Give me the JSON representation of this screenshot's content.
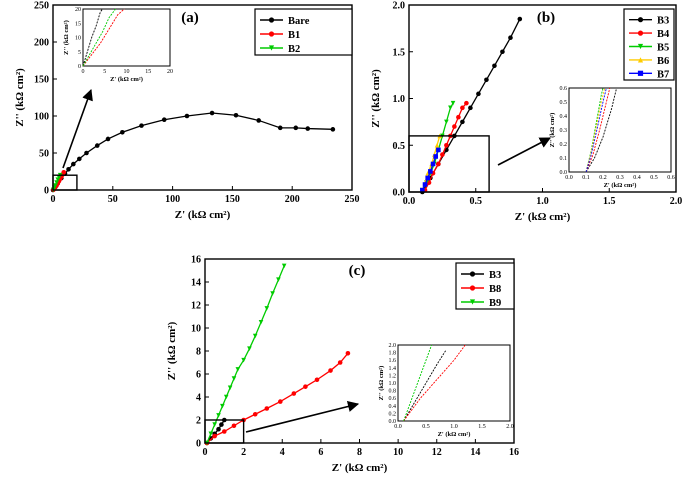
{
  "chart_data": [
    {
      "type": "line",
      "panel": "(a)",
      "xlabel": "Z' (kΩ cm²)",
      "ylabel": "Z'' (kΩ cm²)",
      "xlim": [
        0,
        250
      ],
      "ylim": [
        0,
        250
      ],
      "xticks": [
        0,
        50,
        100,
        150,
        200,
        250
      ],
      "yticks": [
        0,
        50,
        100,
        150,
        200,
        250
      ],
      "legend_position": "top-right",
      "grid": false,
      "series": [
        {
          "name": "Bare",
          "color": "#000000",
          "marker": "circle",
          "points": [
            [
              0,
              0
            ],
            [
              2,
              4
            ],
            [
              4,
              9
            ],
            [
              7,
              16
            ],
            [
              10,
              22
            ],
            [
              13,
              28
            ],
            [
              17,
              35
            ],
            [
              22,
              42
            ],
            [
              28,
              50
            ],
            [
              37,
              60
            ],
            [
              46,
              69
            ],
            [
              58,
              78
            ],
            [
              74,
              87
            ],
            [
              93,
              95
            ],
            [
              112,
              100
            ],
            [
              133,
              104
            ],
            [
              153,
              101
            ],
            [
              172,
              94
            ],
            [
              190,
              84
            ],
            [
              203,
              84
            ],
            [
              213,
              83
            ],
            [
              234,
              82
            ]
          ]
        },
        {
          "name": "B1",
          "color": "#ff0000",
          "marker": "circle",
          "points": [
            [
              0.5,
              0.5
            ],
            [
              1.5,
              3
            ],
            [
              3,
              6
            ],
            [
              4,
              9
            ],
            [
              5,
              12
            ],
            [
              6,
              15
            ],
            [
              7,
              18
            ],
            [
              8,
              21
            ],
            [
              9,
              24
            ]
          ]
        },
        {
          "name": "B2",
          "color": "#00cc00",
          "marker": "triangle-down",
          "points": [
            [
              0.3,
              0.3
            ],
            [
              1,
              3
            ],
            [
              2,
              6
            ],
            [
              3,
              10
            ],
            [
              4,
              14
            ],
            [
              5,
              17
            ],
            [
              6,
              20
            ]
          ]
        }
      ],
      "inset": {
        "xlim": [
          0,
          20
        ],
        "ylim": [
          0,
          20
        ],
        "xticks": [
          0,
          5,
          10,
          15,
          20
        ],
        "yticks": [
          0,
          5,
          10,
          15,
          20
        ],
        "xlabel": "Z' (kΩ cm²)",
        "ylabel": "Z'' (kΩ cm²)",
        "series": [
          {
            "color": "#000000",
            "points": [
              [
                0,
                0
              ],
              [
                1,
                5
              ],
              [
                2,
                10
              ],
              [
                3,
                14
              ],
              [
                4,
                19
              ],
              [
                4.5,
                21
              ]
            ]
          },
          {
            "color": "#ff0000",
            "points": [
              [
                0,
                0
              ],
              [
                2,
                4
              ],
              [
                4,
                8
              ],
              [
                6,
                13
              ],
              [
                8,
                18
              ],
              [
                9.5,
                21
              ]
            ]
          },
          {
            "color": "#00cc00",
            "points": [
              [
                0,
                0
              ],
              [
                1.5,
                4
              ],
              [
                3,
                8
              ],
              [
                4.5,
                12
              ],
              [
                6,
                17
              ],
              [
                7.5,
                21
              ]
            ]
          }
        ]
      },
      "zoom_box": {
        "x": [
          0,
          20
        ],
        "y": [
          0,
          20
        ]
      }
    },
    {
      "type": "line",
      "panel": "(b)",
      "xlabel": "Z' (kΩ cm²)",
      "ylabel": "Z'' (kΩ cm²)",
      "xlim": [
        0,
        2.0
      ],
      "ylim": [
        0,
        2.0
      ],
      "xticks": [
        0.0,
        0.5,
        1.0,
        1.5,
        2.0
      ],
      "yticks": [
        0.0,
        0.5,
        1.0,
        1.5,
        2.0
      ],
      "legend_position": "top-right",
      "grid": false,
      "series": [
        {
          "name": "B3",
          "color": "#000000",
          "marker": "circle",
          "points": [
            [
              0.1,
              0
            ],
            [
              0.16,
              0.15
            ],
            [
              0.22,
              0.3
            ],
            [
              0.28,
              0.45
            ],
            [
              0.34,
              0.6
            ],
            [
              0.4,
              0.75
            ],
            [
              0.46,
              0.9
            ],
            [
              0.52,
              1.05
            ],
            [
              0.58,
              1.2
            ],
            [
              0.64,
              1.35
            ],
            [
              0.7,
              1.5
            ],
            [
              0.76,
              1.65
            ],
            [
              0.83,
              1.85
            ]
          ]
        },
        {
          "name": "B4",
          "color": "#ff0000",
          "marker": "circle",
          "points": [
            [
              0.12,
              0.02
            ],
            [
              0.15,
              0.1
            ],
            [
              0.18,
              0.2
            ],
            [
              0.22,
              0.3
            ],
            [
              0.25,
              0.4
            ],
            [
              0.28,
              0.5
            ],
            [
              0.31,
              0.6
            ],
            [
              0.34,
              0.7
            ],
            [
              0.37,
              0.8
            ],
            [
              0.4,
              0.9
            ],
            [
              0.43,
              0.95
            ]
          ]
        },
        {
          "name": "B5",
          "color": "#00cc00",
          "marker": "triangle-down",
          "points": [
            [
              0.1,
              0.02
            ],
            [
              0.13,
              0.1
            ],
            [
              0.16,
              0.2
            ],
            [
              0.19,
              0.3
            ],
            [
              0.22,
              0.45
            ],
            [
              0.25,
              0.6
            ],
            [
              0.28,
              0.75
            ],
            [
              0.31,
              0.9
            ],
            [
              0.33,
              0.95
            ]
          ]
        },
        {
          "name": "B6",
          "color": "#ffcc00",
          "marker": "triangle-up",
          "points": [
            [
              0.1,
              0.02
            ],
            [
              0.12,
              0.1
            ],
            [
              0.14,
              0.2
            ],
            [
              0.17,
              0.3
            ],
            [
              0.19,
              0.4
            ],
            [
              0.21,
              0.5
            ],
            [
              0.23,
              0.6
            ]
          ]
        },
        {
          "name": "B7",
          "color": "#0000ff",
          "marker": "square",
          "points": [
            [
              0.1,
              0.02
            ],
            [
              0.12,
              0.08
            ],
            [
              0.14,
              0.15
            ],
            [
              0.16,
              0.22
            ],
            [
              0.18,
              0.3
            ],
            [
              0.2,
              0.38
            ],
            [
              0.22,
              0.45
            ]
          ]
        }
      ],
      "inset": {
        "xlim": [
          0,
          0.6
        ],
        "ylim": [
          0,
          0.6
        ],
        "xticks": [
          0.0,
          0.1,
          0.2,
          0.3,
          0.4,
          0.5,
          0.6
        ],
        "yticks": [
          0.0,
          0.1,
          0.2,
          0.3,
          0.4,
          0.5,
          0.6
        ],
        "xlabel": "Z' (kΩ cm²)",
        "ylabel": "Z'' (kΩ cm²)",
        "series": [
          {
            "color": "#000000",
            "points": [
              [
                0.1,
                0
              ],
              [
                0.15,
                0.1
              ],
              [
                0.2,
                0.25
              ],
              [
                0.25,
                0.45
              ],
              [
                0.28,
                0.6
              ]
            ]
          },
          {
            "color": "#ff0000",
            "points": [
              [
                0.1,
                0
              ],
              [
                0.14,
                0.12
              ],
              [
                0.18,
                0.3
              ],
              [
                0.22,
                0.5
              ],
              [
                0.24,
                0.6
              ]
            ]
          },
          {
            "color": "#00cc00",
            "points": [
              [
                0.1,
                0
              ],
              [
                0.13,
                0.15
              ],
              [
                0.16,
                0.35
              ],
              [
                0.19,
                0.55
              ],
              [
                0.2,
                0.6
              ]
            ]
          },
          {
            "color": "#ffcc00",
            "points": [
              [
                0.1,
                0
              ],
              [
                0.13,
                0.14
              ],
              [
                0.16,
                0.32
              ],
              [
                0.19,
                0.5
              ],
              [
                0.21,
                0.6
              ]
            ]
          },
          {
            "color": "#0000ff",
            "points": [
              [
                0.1,
                0
              ],
              [
                0.13,
                0.12
              ],
              [
                0.16,
                0.28
              ],
              [
                0.2,
                0.5
              ],
              [
                0.22,
                0.6
              ]
            ]
          }
        ]
      },
      "zoom_box": {
        "x": [
          0,
          0.6
        ],
        "y": [
          0,
          0.6
        ]
      }
    },
    {
      "type": "line",
      "panel": "(c)",
      "xlabel": "Z' (kΩ cm²)",
      "ylabel": "Z'' (kΩ cm²)",
      "xlim": [
        0,
        16
      ],
      "ylim": [
        0,
        16
      ],
      "xticks": [
        0,
        2,
        4,
        6,
        8,
        10,
        12,
        14,
        16
      ],
      "yticks": [
        0,
        2,
        4,
        6,
        8,
        10,
        12,
        14,
        16
      ],
      "legend_position": "top-right",
      "grid": false,
      "series": [
        {
          "name": "B3",
          "color": "#000000",
          "marker": "circle",
          "points": [
            [
              0.1,
              0
            ],
            [
              0.3,
              0.4
            ],
            [
              0.5,
              0.8
            ],
            [
              0.7,
              1.2
            ],
            [
              0.85,
              1.6
            ],
            [
              1.0,
              2.0
            ]
          ]
        },
        {
          "name": "B8",
          "color": "#ff0000",
          "marker": "circle",
          "points": [
            [
              0.1,
              0
            ],
            [
              0.5,
              0.6
            ],
            [
              1.0,
              1.0
            ],
            [
              1.5,
              1.5
            ],
            [
              2.0,
              2.0
            ],
            [
              2.6,
              2.5
            ],
            [
              3.2,
              3.0
            ],
            [
              3.9,
              3.6
            ],
            [
              4.6,
              4.3
            ],
            [
              5.2,
              4.9
            ],
            [
              5.8,
              5.5
            ],
            [
              6.5,
              6.3
            ],
            [
              7.0,
              7.0
            ],
            [
              7.4,
              7.8
            ]
          ]
        },
        {
          "name": "B9",
          "color": "#00cc00",
          "marker": "triangle-down",
          "points": [
            [
              0.1,
              0
            ],
            [
              0.3,
              0.8
            ],
            [
              0.5,
              1.6
            ],
            [
              0.7,
              2.4
            ],
            [
              0.9,
              3.2
            ],
            [
              1.1,
              4.0
            ],
            [
              1.3,
              4.8
            ],
            [
              1.5,
              5.6
            ],
            [
              1.7,
              6.4
            ],
            [
              2.0,
              7.2
            ],
            [
              2.3,
              8.2
            ],
            [
              2.6,
              9.3
            ],
            [
              2.9,
              10.5
            ],
            [
              3.2,
              11.7
            ],
            [
              3.5,
              13.0
            ],
            [
              3.8,
              14.2
            ],
            [
              4.1,
              15.4
            ]
          ]
        }
      ],
      "inset": {
        "xlim": [
          0,
          2.0
        ],
        "ylim": [
          0,
          2.0
        ],
        "xticks": [
          0.0,
          0.5,
          1.0,
          1.5,
          2.0
        ],
        "yticks": [
          0.0,
          0.2,
          0.4,
          0.6,
          0.8,
          1.0,
          1.2,
          1.4,
          1.6,
          1.8,
          2.0
        ],
        "xlabel": "Z' (kΩ cm²)",
        "ylabel": "Z'' (kΩ cm²)",
        "series": [
          {
            "color": "#000000",
            "points": [
              [
                0.1,
                0
              ],
              [
                0.3,
                0.5
              ],
              [
                0.5,
                1.0
              ],
              [
                0.7,
                1.5
              ],
              [
                0.85,
                1.85
              ]
            ]
          },
          {
            "color": "#ff0000",
            "points": [
              [
                0.1,
                0
              ],
              [
                0.4,
                0.6
              ],
              [
                0.7,
                1.1
              ],
              [
                1.0,
                1.6
              ],
              [
                1.2,
                2.0
              ]
            ]
          },
          {
            "color": "#00cc00",
            "points": [
              [
                0.1,
                0
              ],
              [
                0.25,
                0.6
              ],
              [
                0.4,
                1.2
              ],
              [
                0.55,
                1.8
              ],
              [
                0.6,
                2.0
              ]
            ]
          }
        ]
      },
      "zoom_box": {
        "x": [
          0,
          2
        ],
        "y": [
          0,
          2
        ]
      }
    }
  ]
}
